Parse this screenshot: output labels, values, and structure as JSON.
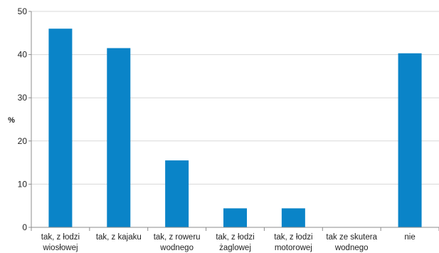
{
  "chart_data": {
    "type": "bar",
    "categories": [
      [
        "tak, z łodzi",
        "wiosłowej"
      ],
      [
        "tak, z kajaku"
      ],
      [
        "tak, z roweru",
        "wodnego"
      ],
      [
        "tak, z łodzi",
        "żaglowej"
      ],
      [
        "tak, z łodzi",
        "motorowej"
      ],
      [
        "tak ze skutera",
        "wodnego"
      ],
      [
        "nie"
      ]
    ],
    "values": [
      46,
      41.5,
      15.5,
      4.4,
      4.4,
      0,
      40.3
    ],
    "ylabel": "%",
    "ylim": [
      0,
      50
    ],
    "yticks": [
      0,
      10,
      20,
      30,
      40,
      50
    ],
    "grid": true,
    "bar_color": "#0a84c8",
    "grid_color": "#d9d9d9",
    "axis_color": "#8c8c8c"
  }
}
